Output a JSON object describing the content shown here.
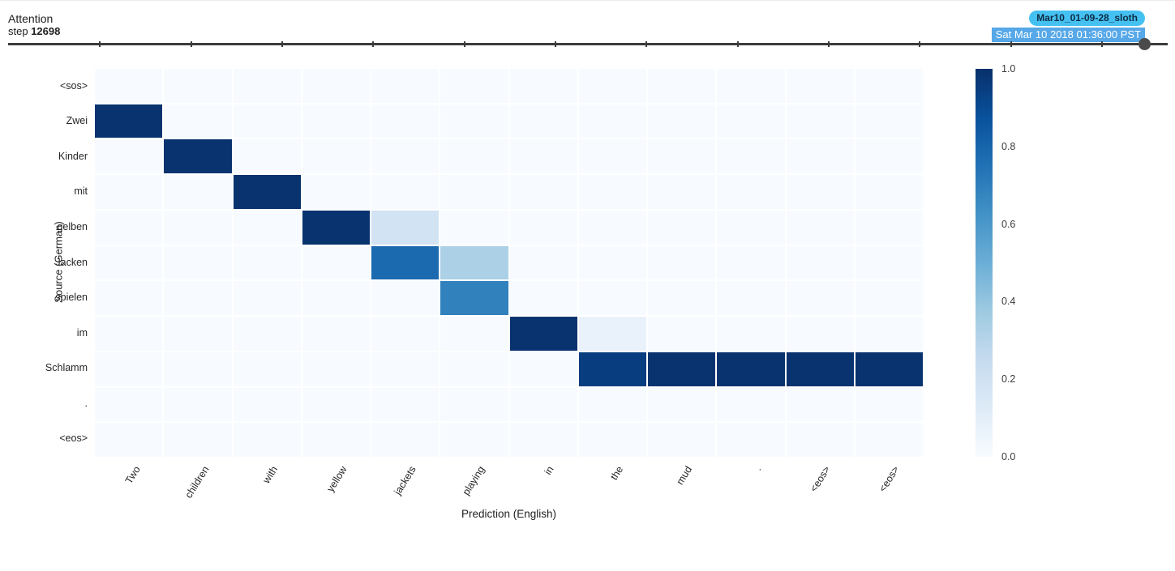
{
  "header": {
    "title": "Attention",
    "step_label": "step",
    "step_value": "12698",
    "run_badge": "Mar10_01-09-28_sloth",
    "timestamp_badge": "Sat Mar 10 2018 01:36:00 PST",
    "run_badge_color": "#45c1f1",
    "timestamp_badge_color": "#56a8e8"
  },
  "slider": {
    "position_pct": 98.0,
    "tick_count": 12
  },
  "chart_data": {
    "type": "heatmap",
    "title": "Attention",
    "xlabel": "Prediction (English)",
    "ylabel": "Source (German)",
    "colormap": "Blues",
    "vmin": 0.0,
    "vmax": 1.0,
    "legend_position": "right-colorbar",
    "colorbar_ticks": [
      "1.0",
      "0.8",
      "0.6",
      "0.4",
      "0.2",
      "0.0"
    ],
    "columns": [
      "Two",
      "children",
      "with",
      "yellow",
      "jackets",
      "playing",
      "in",
      "the",
      "mud",
      ".",
      "<eos>",
      "<eos>"
    ],
    "rows": [
      "<sos>",
      "Zwei",
      "Kinder",
      "mit",
      "gelben",
      "Jacken",
      "spielen",
      "im",
      "Schlamm",
      ".",
      "<eos>"
    ],
    "matrix": [
      [
        0,
        0,
        0,
        0,
        0,
        0,
        0,
        0,
        0,
        0,
        0,
        0
      ],
      [
        0.99,
        0,
        0,
        0,
        0,
        0,
        0,
        0,
        0,
        0,
        0,
        0
      ],
      [
        0,
        0.99,
        0,
        0,
        0,
        0,
        0,
        0,
        0,
        0,
        0,
        0
      ],
      [
        0,
        0,
        0.99,
        0,
        0,
        0,
        0,
        0,
        0,
        0,
        0,
        0
      ],
      [
        0,
        0,
        0,
        0.99,
        0.19,
        0,
        0,
        0,
        0,
        0,
        0,
        0
      ],
      [
        0,
        0,
        0,
        0,
        0.78,
        0.33,
        0,
        0,
        0,
        0,
        0,
        0
      ],
      [
        0,
        0,
        0,
        0,
        0,
        0.69,
        0,
        0,
        0,
        0,
        0,
        0
      ],
      [
        0,
        0,
        0,
        0,
        0,
        0,
        0.99,
        0.07,
        0,
        0,
        0,
        0
      ],
      [
        0,
        0,
        0,
        0,
        0,
        0,
        0,
        0.95,
        0.99,
        0.99,
        0.99,
        0.99
      ],
      [
        0,
        0,
        0,
        0,
        0,
        0,
        0,
        0,
        0,
        0,
        0,
        0
      ],
      [
        0,
        0,
        0,
        0,
        0,
        0,
        0,
        0,
        0,
        0,
        0,
        0
      ]
    ]
  }
}
